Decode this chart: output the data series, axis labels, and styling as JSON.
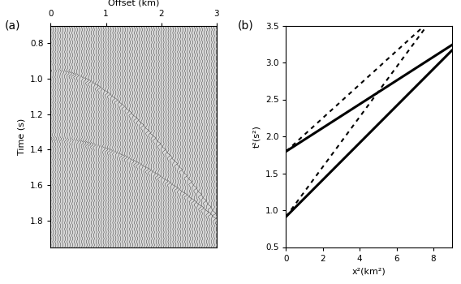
{
  "panel_a": {
    "xlabel": "Offset (km)",
    "ylabel": "Time (s)",
    "x_min": 0,
    "x_max": 3.0,
    "y_min": 0.7,
    "y_max": 1.95,
    "num_traces": 70,
    "reflection1_t0": 0.955,
    "reflection1_v": 2.0,
    "reflection2_t0": 1.34,
    "reflection2_v": 2.5,
    "wavelet_freq": 25,
    "bg_color": "#d8d8d8",
    "xticks": [
      0,
      1,
      2,
      3
    ],
    "yticks": [
      0.8,
      1.0,
      1.2,
      1.4,
      1.6,
      1.8
    ]
  },
  "panel_b": {
    "xlabel": "x²(km²)",
    "ylabel": "t²(s²)",
    "x_min": 0,
    "x_max": 9.0,
    "y_min": 0.5,
    "y_max": 3.5,
    "refl1_t0": 0.955,
    "refl1_v_exact": 2.0,
    "refl1_v_nmo": 1.72,
    "refl2_t0": 1.34,
    "refl2_v_exact": 2.5,
    "refl2_v_nmo": 2.1,
    "xticks": [
      0,
      2,
      4,
      6,
      8
    ],
    "yticks": [
      0.5,
      1.0,
      1.5,
      2.0,
      2.5,
      3.0,
      3.5
    ],
    "solid_lw": 2.2,
    "dot_lw": 1.5
  },
  "label_a": "(a)",
  "label_b": "(b)"
}
